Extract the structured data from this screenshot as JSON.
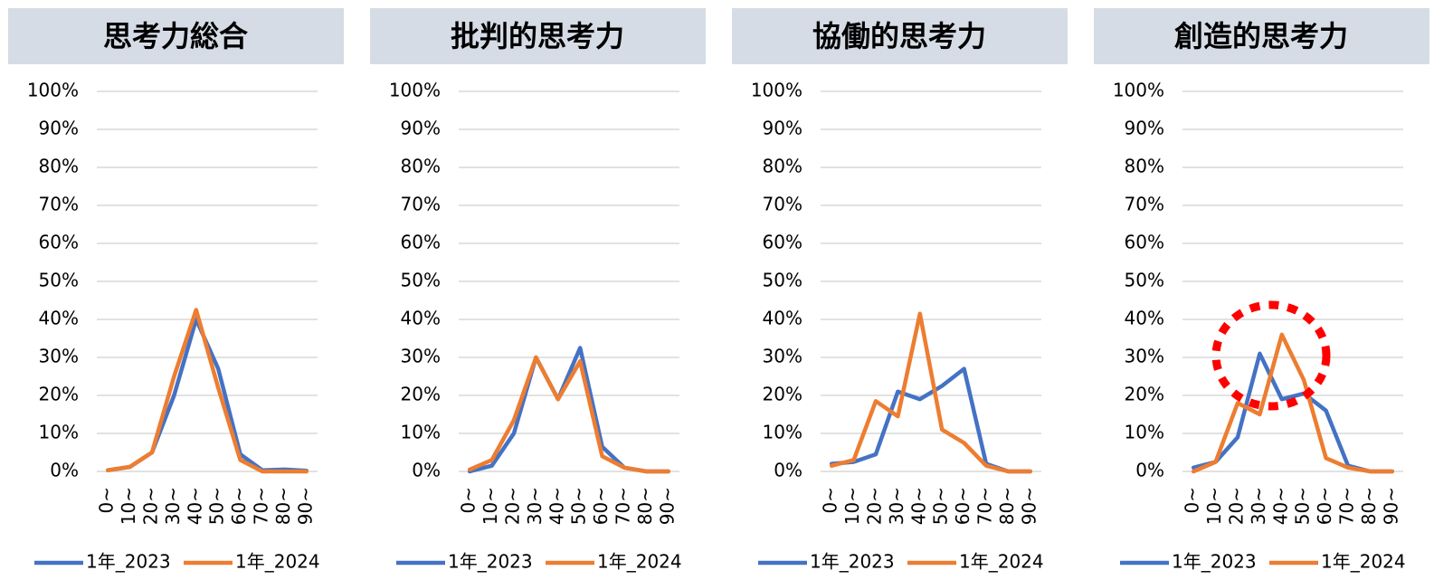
{
  "chart_data": [
    {
      "type": "line",
      "title": "思考力総合",
      "categories": [
        "0~",
        "10~",
        "20~",
        "30~",
        "40~",
        "50~",
        "60~",
        "70~",
        "80~",
        "90~"
      ],
      "series": [
        {
          "name": "1年_2023",
          "color": "#4472c4",
          "values": [
            0.3,
            1.2,
            5,
            20,
            40,
            27,
            4.5,
            0.3,
            0.5,
            0.2
          ]
        },
        {
          "name": "1年_2024",
          "color": "#ed7d31",
          "values": [
            0.3,
            1.2,
            5,
            25,
            42.5,
            22,
            3,
            0,
            0,
            0
          ]
        }
      ],
      "ylim": [
        0,
        100
      ],
      "yticks": [
        {
          "value": 0,
          "label": "0%"
        },
        {
          "value": 10,
          "label": "10%"
        },
        {
          "value": 20,
          "label": "20%"
        },
        {
          "value": 30,
          "label": "30%"
        },
        {
          "value": 40,
          "label": "40%"
        },
        {
          "value": 50,
          "label": "50%"
        },
        {
          "value": 60,
          "label": "60%"
        },
        {
          "value": 70,
          "label": "70%"
        },
        {
          "value": 80,
          "label": "80%"
        },
        {
          "value": 90,
          "label": "90%"
        },
        {
          "value": 100,
          "label": "100%"
        }
      ],
      "grid": true
    },
    {
      "type": "line",
      "title": "批判的思考力",
      "categories": [
        "0~",
        "10~",
        "20~",
        "30~",
        "40~",
        "50~",
        "60~",
        "70~",
        "80~",
        "90~"
      ],
      "series": [
        {
          "name": "1年_2023",
          "color": "#4472c4",
          "values": [
            0,
            1.5,
            10,
            30,
            19,
            32.5,
            6.5,
            1,
            0,
            0
          ]
        },
        {
          "name": "1年_2024",
          "color": "#ed7d31",
          "values": [
            0.5,
            3,
            13.5,
            30,
            19,
            29,
            4,
            1,
            0,
            0
          ]
        }
      ],
      "ylim": [
        0,
        100
      ],
      "yticks": [
        {
          "value": 0,
          "label": "0%"
        },
        {
          "value": 10,
          "label": "10%"
        },
        {
          "value": 20,
          "label": "20%"
        },
        {
          "value": 30,
          "label": "30%"
        },
        {
          "value": 40,
          "label": "40%"
        },
        {
          "value": 50,
          "label": "50%"
        },
        {
          "value": 60,
          "label": "60%"
        },
        {
          "value": 70,
          "label": "70%"
        },
        {
          "value": 80,
          "label": "80%"
        },
        {
          "value": 90,
          "label": "90%"
        },
        {
          "value": 100,
          "label": "100%"
        }
      ],
      "grid": true
    },
    {
      "type": "line",
      "title": "協働的思考力",
      "categories": [
        "0~",
        "10~",
        "20~",
        "30~",
        "40~",
        "50~",
        "60~",
        "70~",
        "80~",
        "90~"
      ],
      "series": [
        {
          "name": "1年_2023",
          "color": "#4472c4",
          "values": [
            2,
            2.5,
            4.5,
            21,
            19,
            22.5,
            27,
            2,
            0,
            0
          ]
        },
        {
          "name": "1年_2024",
          "color": "#ed7d31",
          "values": [
            1.5,
            3,
            18.5,
            14.5,
            41.5,
            11,
            7.5,
            1.5,
            0,
            0
          ]
        }
      ],
      "ylim": [
        0,
        100
      ],
      "yticks": [
        {
          "value": 0,
          "label": "0%"
        },
        {
          "value": 10,
          "label": "10%"
        },
        {
          "value": 20,
          "label": "20%"
        },
        {
          "value": 30,
          "label": "30%"
        },
        {
          "value": 40,
          "label": "40%"
        },
        {
          "value": 50,
          "label": "50%"
        },
        {
          "value": 60,
          "label": "60%"
        },
        {
          "value": 70,
          "label": "70%"
        },
        {
          "value": 80,
          "label": "80%"
        },
        {
          "value": 90,
          "label": "90%"
        },
        {
          "value": 100,
          "label": "100%"
        }
      ],
      "grid": true
    },
    {
      "type": "line",
      "title": "創造的思考力",
      "categories": [
        "0~",
        "10~",
        "20~",
        "30~",
        "40~",
        "50~",
        "60~",
        "70~",
        "80~",
        "90~"
      ],
      "series": [
        {
          "name": "1年_2023",
          "color": "#4472c4",
          "values": [
            1,
            2.5,
            9,
            31,
            19,
            20.5,
            16,
            1.5,
            0,
            0
          ]
        },
        {
          "name": "1年_2024",
          "color": "#ed7d31",
          "values": [
            0,
            2.5,
            18,
            15,
            36,
            24,
            3.5,
            1,
            0,
            0
          ]
        }
      ],
      "ylim": [
        0,
        100
      ],
      "yticks": [
        {
          "value": 0,
          "label": "0%"
        },
        {
          "value": 10,
          "label": "10%"
        },
        {
          "value": 20,
          "label": "20%"
        },
        {
          "value": 30,
          "label": "30%"
        },
        {
          "value": 40,
          "label": "40%"
        },
        {
          "value": 50,
          "label": "50%"
        },
        {
          "value": 60,
          "label": "60%"
        },
        {
          "value": 70,
          "label": "70%"
        },
        {
          "value": 80,
          "label": "80%"
        },
        {
          "value": 90,
          "label": "90%"
        },
        {
          "value": 100,
          "label": "100%"
        }
      ],
      "grid": true
    }
  ]
}
